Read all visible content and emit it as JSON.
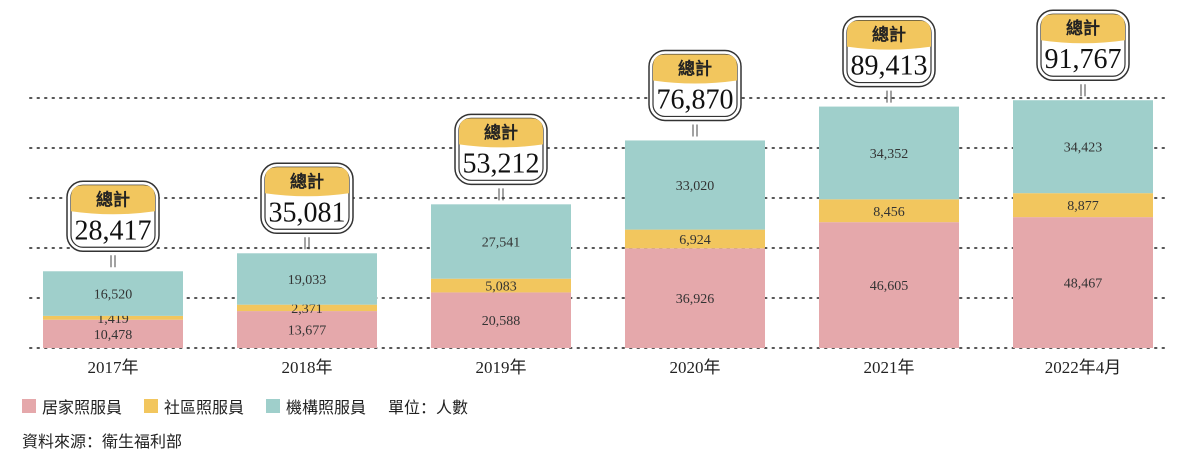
{
  "chart_data": {
    "type": "bar",
    "stacked": true,
    "categories": [
      "2017年",
      "2018年",
      "2019年",
      "2020年",
      "2021年",
      "2022年4月"
    ],
    "series": [
      {
        "name": "居家照服員",
        "color": "#E5A8AB",
        "values": [
          10478,
          13677,
          20588,
          36926,
          46605,
          48467
        ]
      },
      {
        "name": "社區照服員",
        "color": "#F2C65E",
        "values": [
          1419,
          2371,
          5083,
          6924,
          8456,
          8877
        ]
      },
      {
        "name": "機構照服員",
        "color": "#9FCFCB",
        "values": [
          16520,
          19033,
          27541,
          33020,
          34352,
          34423
        ]
      }
    ],
    "total_label": "總計",
    "totals": [
      "28,417",
      "35,081",
      "53,212",
      "76,870",
      "89,413",
      "91,767"
    ],
    "data_labels": [
      [
        "10,478",
        "13,677",
        "20,588",
        "36,926",
        "46,605",
        "48,467"
      ],
      [
        "1,419",
        "2,371",
        "5,083",
        "6,924",
        "8,456",
        "8,877"
      ],
      [
        "16,520",
        "19,033",
        "27,541",
        "33,020",
        "34,352",
        "34,423"
      ]
    ],
    "unit": "單位：人數",
    "grid": true,
    "ylim": [
      0,
      130000
    ],
    "legend_position": "bottom-left"
  },
  "source": "資料來源：衛生福利部",
  "colors": {
    "badge_fill": "#F2C65E",
    "badge_border": "#333333",
    "grid": "#555555"
  }
}
